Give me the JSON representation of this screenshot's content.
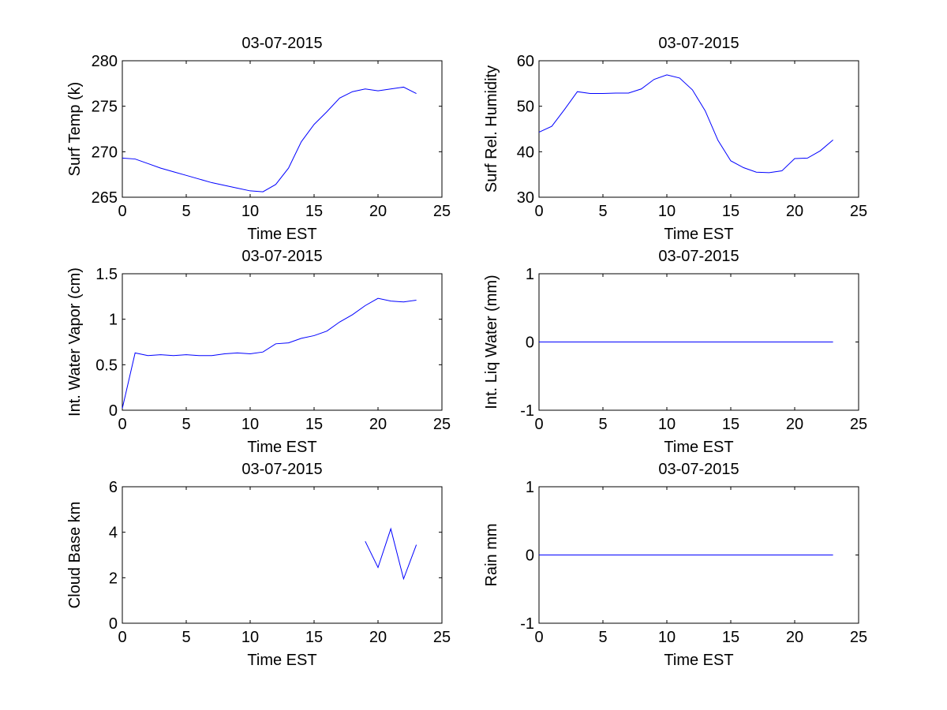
{
  "figure": {
    "background": "#ffffff",
    "line_color": "#0000ff"
  },
  "chart_data": [
    {
      "type": "line",
      "title": "03-07-2015",
      "xlabel": "Time EST",
      "ylabel": "Surf Temp (k)",
      "xlim": [
        0,
        25
      ],
      "ylim": [
        265,
        280
      ],
      "xticks": [
        0,
        5,
        10,
        15,
        20,
        25
      ],
      "yticks": [
        265,
        270,
        275,
        280
      ],
      "grid": false,
      "x": [
        0,
        1,
        2,
        3,
        4,
        5,
        6,
        7,
        8,
        9,
        10,
        11,
        12,
        13,
        14,
        15,
        16,
        17,
        18,
        19,
        20,
        21,
        22,
        23
      ],
      "series": [
        {
          "values": [
            269.3,
            269.2,
            268.7,
            268.2,
            267.8,
            267.4,
            267.0,
            266.6,
            266.3,
            266.0,
            265.7,
            265.6,
            266.4,
            268.2,
            271.1,
            273.0,
            274.4,
            275.9,
            276.6,
            276.9,
            276.7,
            276.9,
            277.1,
            276.4
          ]
        }
      ]
    },
    {
      "type": "line",
      "title": "03-07-2015",
      "xlabel": "Time EST",
      "ylabel": "Surf Rel. Humidity",
      "xlim": [
        0,
        25
      ],
      "ylim": [
        30,
        60
      ],
      "xticks": [
        0,
        5,
        10,
        15,
        20,
        25
      ],
      "yticks": [
        30,
        40,
        50,
        60
      ],
      "grid": false,
      "x": [
        0,
        1,
        2,
        3,
        4,
        5,
        6,
        7,
        8,
        9,
        10,
        11,
        12,
        13,
        14,
        15,
        16,
        17,
        18,
        19,
        20,
        21,
        22,
        23
      ],
      "series": [
        {
          "values": [
            44.3,
            45.6,
            49.3,
            53.2,
            52.8,
            52.8,
            52.9,
            52.9,
            53.8,
            55.9,
            56.9,
            56.2,
            53.6,
            49.0,
            42.5,
            38.0,
            36.5,
            35.5,
            35.4,
            35.8,
            38.5,
            38.6,
            40.2,
            42.6
          ]
        }
      ]
    },
    {
      "type": "line",
      "title": "03-07-2015",
      "xlabel": "Time EST",
      "ylabel": "Int. Water Vapor (cm)",
      "xlim": [
        0,
        25
      ],
      "ylim": [
        0,
        1.5
      ],
      "xticks": [
        0,
        5,
        10,
        15,
        20,
        25
      ],
      "yticks": [
        0,
        0.5,
        1,
        1.5
      ],
      "ytick_labels": [
        "0",
        "0.5",
        "1",
        "1.5"
      ],
      "grid": false,
      "x": [
        0,
        1,
        2,
        3,
        4,
        5,
        6,
        7,
        8,
        9,
        10,
        11,
        12,
        13,
        14,
        15,
        16,
        17,
        18,
        19,
        20,
        21,
        22,
        23
      ],
      "series": [
        {
          "values": [
            0.02,
            0.63,
            0.6,
            0.61,
            0.6,
            0.61,
            0.6,
            0.6,
            0.62,
            0.63,
            0.62,
            0.64,
            0.73,
            0.74,
            0.79,
            0.82,
            0.87,
            0.97,
            1.05,
            1.15,
            1.23,
            1.2,
            1.19,
            1.21
          ]
        }
      ]
    },
    {
      "type": "line",
      "title": "03-07-2015",
      "xlabel": "Time EST",
      "ylabel": "Int. Liq Water (mm)",
      "xlim": [
        0,
        25
      ],
      "ylim": [
        -1,
        1
      ],
      "xticks": [
        0,
        5,
        10,
        15,
        20,
        25
      ],
      "yticks": [
        -1,
        0,
        1
      ],
      "grid": false,
      "x": [
        0,
        1,
        2,
        3,
        4,
        5,
        6,
        7,
        8,
        9,
        10,
        11,
        12,
        13,
        14,
        15,
        16,
        17,
        18,
        19,
        20,
        21,
        22,
        23
      ],
      "series": [
        {
          "values": [
            0,
            0,
            0,
            0,
            0,
            0,
            0,
            0,
            0,
            0,
            0,
            0,
            0,
            0,
            0,
            0,
            0,
            0,
            0,
            0,
            0,
            0,
            0,
            0
          ]
        }
      ]
    },
    {
      "type": "line",
      "title": "03-07-2015",
      "xlabel": "Time EST",
      "ylabel": "Cloud Base km",
      "xlim": [
        0,
        25
      ],
      "ylim": [
        0,
        6
      ],
      "xticks": [
        0,
        5,
        10,
        15,
        20,
        25
      ],
      "yticks": [
        0,
        2,
        4,
        6
      ],
      "grid": false,
      "x": [
        19,
        20,
        21,
        22,
        23
      ],
      "series": [
        {
          "values": [
            3.6,
            2.45,
            4.15,
            1.95,
            3.45
          ]
        }
      ]
    },
    {
      "type": "line",
      "title": "03-07-2015",
      "xlabel": "Time EST",
      "ylabel": "Rain mm",
      "xlim": [
        0,
        25
      ],
      "ylim": [
        -1,
        1
      ],
      "xticks": [
        0,
        5,
        10,
        15,
        20,
        25
      ],
      "yticks": [
        -1,
        0,
        1
      ],
      "grid": false,
      "x": [
        0,
        1,
        2,
        3,
        4,
        5,
        6,
        7,
        8,
        9,
        10,
        11,
        12,
        13,
        14,
        15,
        16,
        17,
        18,
        19,
        20,
        21,
        22,
        23
      ],
      "series": [
        {
          "values": [
            0,
            0,
            0,
            0,
            0,
            0,
            0,
            0,
            0,
            0,
            0,
            0,
            0,
            0,
            0,
            0,
            0,
            0,
            0,
            0,
            0,
            0,
            0,
            0
          ]
        }
      ]
    }
  ]
}
